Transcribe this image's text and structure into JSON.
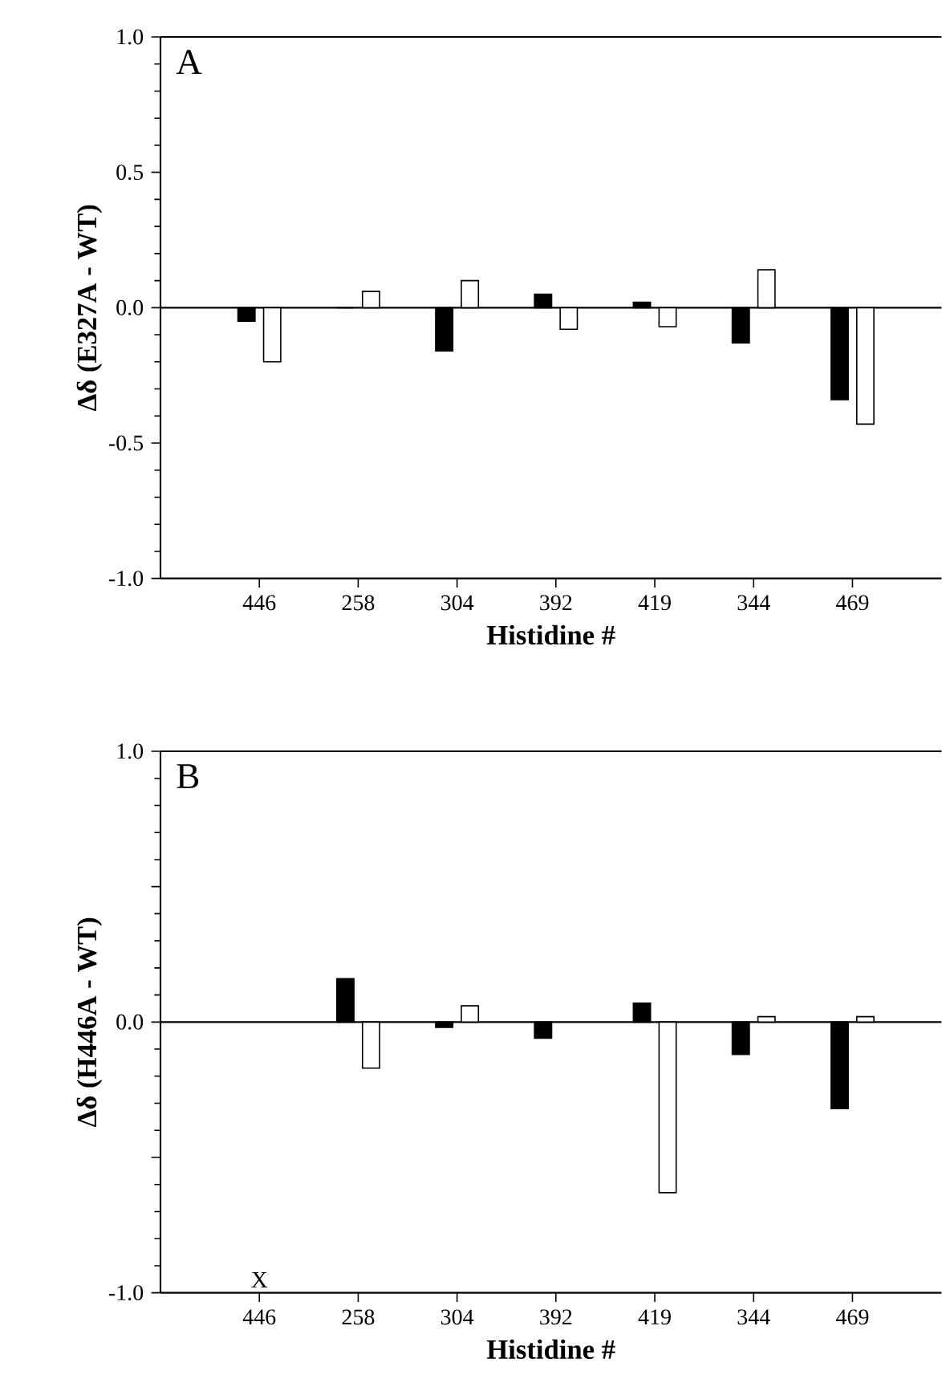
{
  "chart_data": [
    {
      "type": "bar",
      "xlabel": "Histidine #",
      "ylabel": "Δδ (E327A - WT)",
      "annotations": [
        "A"
      ],
      "categories": [
        "446",
        "258",
        "304",
        "392",
        "419",
        "344",
        "469"
      ],
      "series": [
        {
          "color": "#000000",
          "values": [
            -0.05,
            0,
            -0.16,
            0.05,
            0.02,
            -0.13,
            -0.34
          ]
        },
        {
          "color": "#ffffff",
          "values": [
            -0.2,
            0.06,
            0.1,
            -0.08,
            -0.07,
            0.14,
            -0.43
          ]
        }
      ],
      "ylim": [
        -1.0,
        1.0
      ],
      "yticks": [
        {
          "value": -1.0,
          "label": "-1.0"
        },
        {
          "value": -0.5,
          "label": "-0.5"
        },
        {
          "value": 0,
          "label": "0.0"
        },
        {
          "value": 0.5,
          "label": "0.5"
        },
        {
          "value": 1.0,
          "label": "1.0"
        }
      ],
      "ref_lines": [
        {
          "axis": "y",
          "value": 0
        }
      ]
    },
    {
      "type": "bar",
      "xlabel": "Histidine #",
      "ylabel": "Δδ (H446A - WT)",
      "annotations": [
        "B",
        "X"
      ],
      "categories": [
        "446",
        "258",
        "304",
        "392",
        "419",
        "344",
        "469"
      ],
      "series": [
        {
          "color": "#000000",
          "values": [
            null,
            0.16,
            -0.02,
            -0.06,
            0.07,
            -0.12,
            -0.32
          ]
        },
        {
          "color": "#ffffff",
          "values": [
            null,
            -0.17,
            0.06,
            null,
            -0.63,
            0.02,
            0.02
          ]
        }
      ],
      "ylim": [
        -1.0,
        1.0
      ],
      "yticks": [
        {
          "value": -1.0,
          "label": "-1.0"
        },
        {
          "value": -0.5,
          "label": null
        },
        {
          "value": 0,
          "label": "0.0"
        },
        {
          "value": 0.5,
          "label": null
        },
        {
          "value": 1.0,
          "label": "1.0"
        }
      ],
      "ref_lines": [
        {
          "axis": "y",
          "value": 0
        }
      ]
    }
  ]
}
